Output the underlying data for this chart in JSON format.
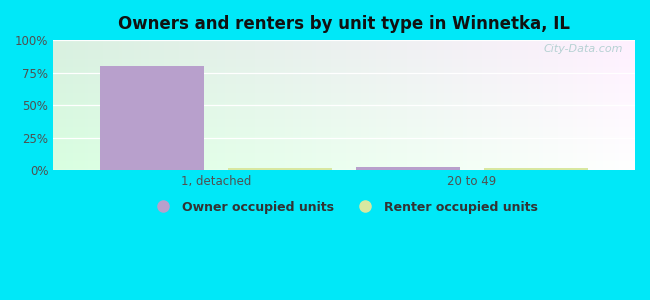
{
  "title": "Owners and renters by unit type in Winnetka, IL",
  "categories": [
    "1, detached",
    "20 to 49"
  ],
  "owner_values": [
    80,
    2.5
  ],
  "renter_values": [
    1.5,
    1.5
  ],
  "owner_color": "#b8a0cc",
  "renter_color": "#d8e8a0",
  "outer_bg": "#00e8f8",
  "plot_bg_colors": [
    "#e0f2e0",
    "#f0faf5"
  ],
  "ylim": [
    0,
    100
  ],
  "yticks": [
    0,
    25,
    50,
    75,
    100
  ],
  "ytick_labels": [
    "0%",
    "25%",
    "50%",
    "75%",
    "100%"
  ],
  "legend_labels": [
    "Owner occupied units",
    "Renter occupied units"
  ],
  "watermark": "City-Data.com",
  "bar_width": 0.18,
  "group_positions": [
    0.28,
    0.72
  ],
  "group_bar_gap": 0.04,
  "title_fontsize": 12,
  "tick_fontsize": 8.5
}
